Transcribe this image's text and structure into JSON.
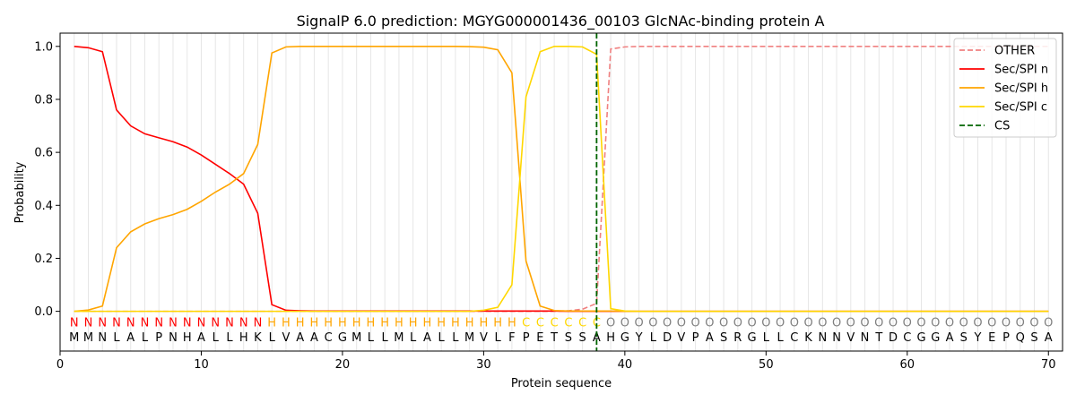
{
  "chart_data": {
    "type": "line",
    "title": "SignalP 6.0 prediction: MGYG000001436_00103 GlcNAc-binding protein A",
    "xlabel": "Protein sequence",
    "ylabel": "Probability",
    "xlim": [
      0,
      71
    ],
    "ylim": [
      -0.15,
      1.05
    ],
    "x_ticks": [
      0,
      10,
      20,
      30,
      40,
      50,
      60,
      70
    ],
    "y_ticks": [
      0.0,
      0.2,
      0.4,
      0.6,
      0.8,
      1.0
    ],
    "x_tick_labels": [
      "0",
      "10",
      "20",
      "30",
      "40",
      "50",
      "60",
      "70"
    ],
    "y_tick_labels": [
      "0.0",
      "0.2",
      "0.4",
      "0.6",
      "0.8",
      "1.0"
    ],
    "grid": "vertical lines at each residue",
    "legend_position": "top-right",
    "sequence": [
      "M",
      "M",
      "N",
      "L",
      "A",
      "L",
      "P",
      "N",
      "H",
      "A",
      "L",
      "L",
      "H",
      "K",
      "L",
      "V",
      "A",
      "A",
      "C",
      "G",
      "M",
      "L",
      "L",
      "M",
      "L",
      "A",
      "L",
      "L",
      "M",
      "V",
      "L",
      "F",
      "P",
      "E",
      "T",
      "S",
      "S",
      "A",
      "H",
      "G",
      "Y",
      "L",
      "D",
      "V",
      "P",
      "A",
      "S",
      "R",
      "G",
      "L",
      "L",
      "C",
      "K",
      "N",
      "N",
      "V",
      "N",
      "T",
      "D",
      "C",
      "G",
      "G",
      "A",
      "S",
      "Y",
      "E",
      "P",
      "Q",
      "S",
      "A"
    ],
    "region_labels": [
      "N",
      "N",
      "N",
      "N",
      "N",
      "N",
      "N",
      "N",
      "N",
      "N",
      "N",
      "N",
      "N",
      "N",
      "H",
      "H",
      "H",
      "H",
      "H",
      "H",
      "H",
      "H",
      "H",
      "H",
      "H",
      "H",
      "H",
      "H",
      "H",
      "H",
      "H",
      "H",
      "C",
      "C",
      "C",
      "C",
      "C",
      "C",
      "O",
      "O",
      "O",
      "O",
      "O",
      "O",
      "O",
      "O",
      "O",
      "O",
      "O",
      "O",
      "O",
      "O",
      "O",
      "O",
      "O",
      "O",
      "O",
      "O",
      "O",
      "O",
      "O",
      "O",
      "O",
      "O",
      "O",
      "O",
      "O",
      "O",
      "O",
      "O"
    ],
    "region_colors": {
      "N": "#ff0000",
      "H": "#ffa500",
      "C": "#ffd700",
      "O": "#808080"
    },
    "series": [
      {
        "name": "OTHER",
        "color": "#f08080",
        "dashed": true,
        "values": [
          0,
          0,
          0,
          0,
          0,
          0,
          0,
          0,
          0,
          0,
          0,
          0,
          0,
          0,
          0,
          0,
          0,
          0,
          0,
          0,
          0,
          0,
          0,
          0,
          0,
          0,
          0,
          0,
          0,
          0,
          0,
          0,
          0,
          0,
          0,
          0.002,
          0.008,
          0.03,
          0.99,
          0.998,
          1,
          1,
          1,
          1,
          1,
          1,
          1,
          1,
          1,
          1,
          1,
          1,
          1,
          1,
          1,
          1,
          1,
          1,
          1,
          1,
          1,
          1,
          1,
          1,
          1,
          1,
          1,
          1,
          1,
          1
        ]
      },
      {
        "name": "Sec/SPI n",
        "color": "#ff0000",
        "dashed": false,
        "values": [
          1.0,
          0.995,
          0.98,
          0.76,
          0.7,
          0.67,
          0.655,
          0.64,
          0.62,
          0.59,
          0.555,
          0.52,
          0.48,
          0.37,
          0.025,
          0.004,
          0.002,
          0.001,
          0.001,
          0.001,
          0.001,
          0.001,
          0.001,
          0.001,
          0.001,
          0.001,
          0.001,
          0.001,
          0.001,
          0.001,
          0.001,
          0.001,
          0.001,
          0.001,
          0.001,
          0,
          0,
          0,
          0,
          0,
          0,
          0,
          0,
          0,
          0,
          0,
          0,
          0,
          0,
          0,
          0,
          0,
          0,
          0,
          0,
          0,
          0,
          0,
          0,
          0,
          0,
          0,
          0,
          0,
          0,
          0,
          0,
          0,
          0,
          0
        ]
      },
      {
        "name": "Sec/SPI h",
        "color": "#ffa500",
        "dashed": false,
        "values": [
          0,
          0.005,
          0.02,
          0.24,
          0.3,
          0.33,
          0.35,
          0.365,
          0.385,
          0.415,
          0.45,
          0.48,
          0.52,
          0.63,
          0.975,
          0.998,
          1.0,
          1.0,
          1.0,
          1.0,
          1.0,
          1.0,
          1.0,
          1.0,
          1.0,
          1.0,
          1.0,
          1.0,
          0.999,
          0.997,
          0.987,
          0.9,
          0.19,
          0.02,
          0.003,
          0.001,
          0.001,
          0.001,
          0.001,
          0,
          0,
          0,
          0,
          0,
          0,
          0,
          0,
          0,
          0,
          0,
          0,
          0,
          0,
          0,
          0,
          0,
          0,
          0,
          0,
          0,
          0,
          0,
          0,
          0,
          0,
          0,
          0,
          0,
          0,
          0
        ]
      },
      {
        "name": "Sec/SPI c",
        "color": "#ffd700",
        "dashed": false,
        "values": [
          0,
          0,
          0,
          0,
          0,
          0,
          0,
          0,
          0,
          0,
          0,
          0,
          0,
          0,
          0,
          0,
          0,
          0,
          0,
          0,
          0,
          0,
          0,
          0,
          0,
          0,
          0,
          0,
          0,
          0.004,
          0.015,
          0.1,
          0.81,
          0.98,
          1.0,
          1.0,
          0.998,
          0.97,
          0.01,
          0.001,
          0,
          0,
          0,
          0,
          0,
          0,
          0,
          0,
          0,
          0,
          0,
          0,
          0,
          0,
          0,
          0,
          0,
          0,
          0,
          0,
          0,
          0,
          0,
          0,
          0,
          0,
          0,
          0,
          0,
          0
        ]
      }
    ],
    "cs": {
      "name": "CS",
      "x": 38,
      "color": "#006400"
    }
  }
}
